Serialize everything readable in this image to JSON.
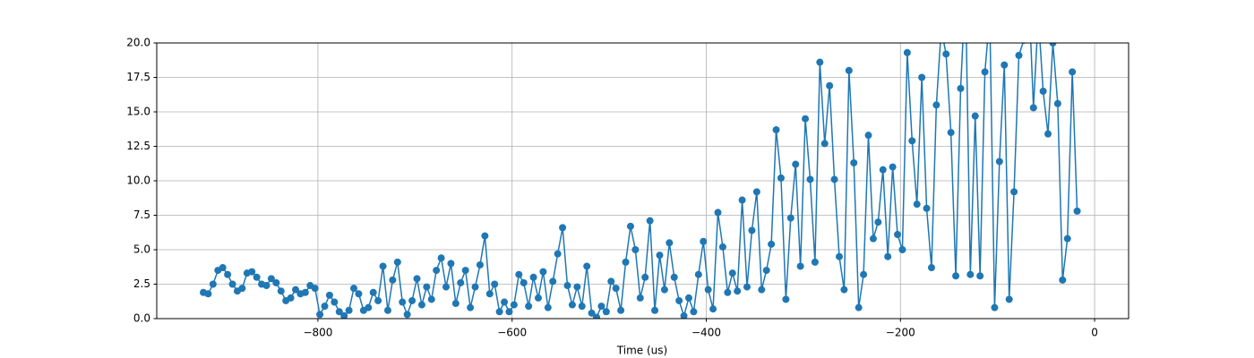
{
  "chart_data": {
    "type": "line",
    "xlabel": "Time (us)",
    "color": "#1f77b4",
    "grid": true,
    "xlim": [
      -966,
      35
    ],
    "ylim": [
      0,
      20
    ],
    "xticks": [
      {
        "value": -800,
        "label": "−800"
      },
      {
        "value": -600,
        "label": "−600"
      },
      {
        "value": -400,
        "label": "−400"
      },
      {
        "value": -200,
        "label": "−200"
      },
      0
    ],
    "yticks": [
      {
        "value": 0,
        "label": "0.0"
      },
      2.5,
      {
        "value": 5,
        "label": "5.0"
      },
      7.5,
      {
        "value": 10,
        "label": "10.0"
      },
      12.5,
      {
        "value": 15,
        "label": "15.0"
      },
      17.5,
      {
        "value": 20,
        "label": "20.0"
      }
    ],
    "x": [
      -918,
      -913,
      -908,
      -903,
      -898,
      -893,
      -888,
      -883,
      -878,
      -873,
      -868,
      -863,
      -858,
      -853,
      -848,
      -843,
      -838,
      -833,
      -828,
      -823,
      -818,
      -813,
      -808,
      -803,
      -798,
      -793,
      -788,
      -783,
      -778,
      -773,
      -768,
      -763,
      -758,
      -753,
      -748,
      -743,
      -738,
      -733,
      -728,
      -723,
      -718,
      -713,
      -708,
      -703,
      -698,
      -693,
      -688,
      -683,
      -678,
      -673,
      -668,
      -663,
      -658,
      -653,
      -648,
      -643,
      -638,
      -633,
      -628,
      -623,
      -618,
      -613,
      -608,
      -603,
      -598,
      -593,
      -588,
      -583,
      -578,
      -573,
      -568,
      -563,
      -558,
      -553,
      -548,
      -543,
      -538,
      -533,
      -528,
      -523,
      -518,
      -513,
      -508,
      -503,
      -498,
      -493,
      -488,
      -483,
      -478,
      -473,
      -468,
      -463,
      -458,
      -453,
      -448,
      -443,
      -438,
      -433,
      -428,
      -423,
      -418,
      -413,
      -408,
      -403,
      -398,
      -393,
      -388,
      -383,
      -378,
      -373,
      -368,
      -363,
      -358,
      -353,
      -348,
      -343,
      -338,
      -333,
      -328,
      -323,
      -318,
      -313,
      -308,
      -303,
      -298,
      -293,
      -288,
      -283,
      -278,
      -273,
      -268,
      -263,
      -258,
      -253,
      -248,
      -243,
      -238,
      -233,
      -228,
      -223,
      -218,
      -213,
      -208,
      -203,
      -198,
      -193,
      -188,
      -183,
      -178,
      -173,
      -168,
      -163,
      -158,
      -153,
      -148,
      -143,
      -138,
      -133,
      -128,
      -123,
      -118,
      -113,
      -108,
      -103,
      -98,
      -93,
      -88,
      -83,
      -78,
      -73,
      -68,
      -63,
      -58,
      -53,
      -48,
      -43,
      -38,
      -33,
      -28,
      -23,
      -18
    ],
    "values": [
      1.9,
      1.8,
      2.5,
      3.5,
      3.7,
      3.2,
      2.5,
      2.0,
      2.2,
      3.3,
      3.4,
      3.0,
      2.5,
      2.4,
      2.9,
      2.6,
      2.0,
      1.3,
      1.5,
      2.1,
      1.8,
      1.9,
      2.4,
      2.2,
      0.3,
      0.9,
      1.7,
      1.2,
      0.5,
      0.2,
      0.6,
      2.2,
      1.8,
      0.6,
      0.8,
      1.9,
      1.3,
      3.8,
      0.6,
      2.8,
      4.1,
      1.2,
      0.3,
      1.3,
      2.9,
      1.0,
      2.3,
      1.4,
      3.5,
      4.4,
      2.3,
      4.0,
      1.1,
      2.6,
      3.5,
      0.8,
      2.3,
      3.9,
      6.0,
      1.8,
      2.5,
      0.5,
      1.2,
      0.5,
      1.0,
      3.2,
      2.6,
      0.9,
      3.0,
      1.5,
      3.4,
      0.8,
      2.7,
      4.7,
      6.6,
      2.4,
      1.0,
      2.3,
      0.9,
      3.8,
      0.4,
      0.1,
      0.9,
      0.5,
      2.7,
      2.2,
      0.6,
      4.1,
      6.7,
      5.0,
      1.5,
      3.0,
      7.1,
      0.6,
      4.6,
      2.1,
      5.5,
      3.0,
      1.3,
      0.2,
      1.5,
      0.5,
      3.2,
      5.6,
      2.1,
      0.7,
      7.7,
      5.2,
      1.9,
      3.3,
      2.0,
      8.6,
      2.3,
      6.4,
      9.2,
      2.1,
      3.5,
      5.4,
      13.7,
      10.2,
      1.4,
      7.3,
      11.2,
      3.8,
      14.5,
      10.1,
      4.1,
      18.6,
      12.7,
      16.9,
      10.1,
      4.5,
      2.1,
      18.0,
      11.3,
      0.8,
      3.2,
      13.3,
      5.8,
      7.0,
      10.8,
      4.5,
      11.0,
      6.1,
      5.0,
      19.3,
      12.9,
      8.3,
      17.5,
      8.0,
      3.7,
      15.5,
      21,
      19.2,
      13.5,
      3.1,
      16.7,
      24,
      3.2,
      14.7,
      3.1,
      17.9,
      22,
      0.8,
      11.4,
      18.4,
      1.4,
      9.2,
      19.1,
      20.2,
      24,
      15.3,
      22,
      16.5,
      13.4,
      20,
      15.6,
      2.8,
      5.8,
      17.9,
      7.8
    ]
  }
}
